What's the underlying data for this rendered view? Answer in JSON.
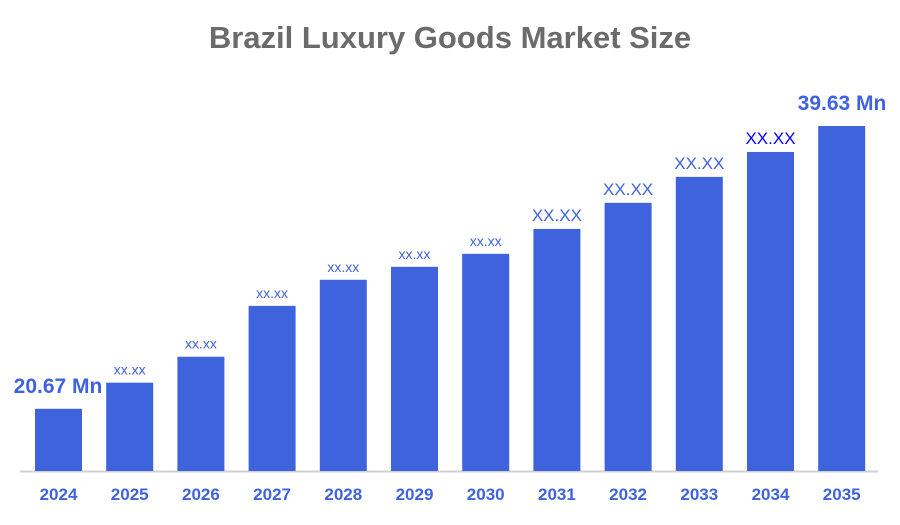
{
  "chart_data": {
    "type": "bar",
    "title": "Brazil Luxury Goods Market Size",
    "xlabel": "",
    "ylabel": "",
    "categories": [
      "2024",
      "2025",
      "2026",
      "2027",
      "2028",
      "2029",
      "2030",
      "2031",
      "2032",
      "2033",
      "2034",
      "2035"
    ],
    "values": [
      20.67,
      22.42,
      24.16,
      27.57,
      29.32,
      30.19,
      31.06,
      32.73,
      34.48,
      36.22,
      37.89,
      39.63
    ],
    "data_labels": [
      "20.67 Mn",
      "xx.xx",
      "xx.xx",
      "xx.xx",
      "xx.xx",
      "xx.xx",
      "xx.xx",
      "XX.XX",
      "XX.XX",
      "XX.XX",
      "XX.XX",
      "39.63 Mn"
    ],
    "ylim": [
      16.5,
      40
    ],
    "grid": false,
    "legend": "none",
    "colors": {
      "bar": "#3f63dd",
      "label": "#3f63dd",
      "label_highlight": "#0000ff",
      "title": "#6b6b6b",
      "axis": "#d0d0d0"
    }
  }
}
